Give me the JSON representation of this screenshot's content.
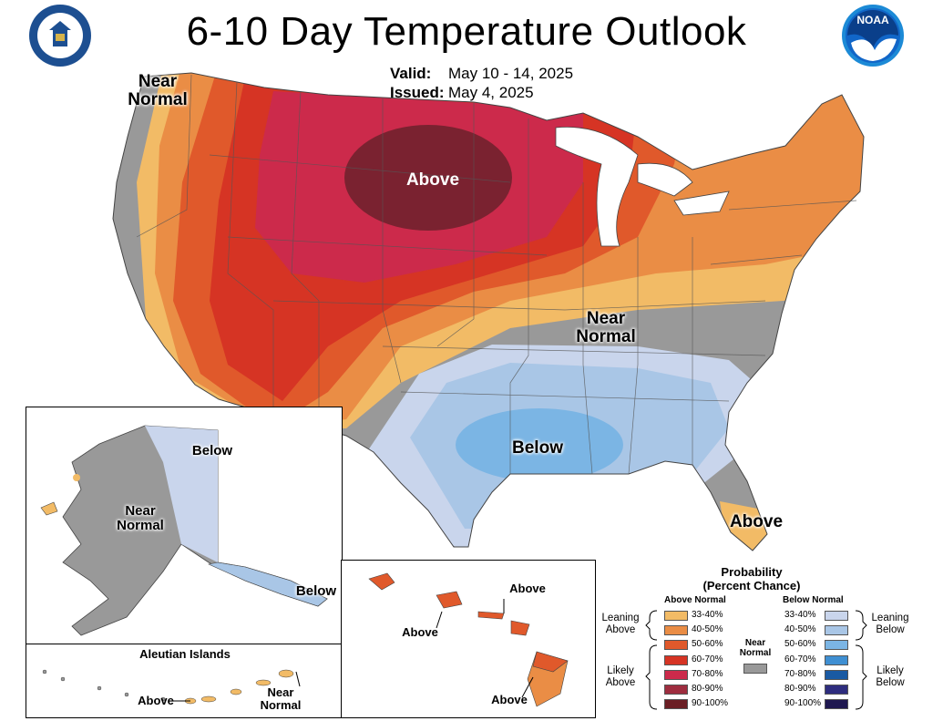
{
  "header": {
    "title": "6-10 Day Temperature Outlook",
    "valid_label": "Valid:",
    "valid_value": "May 10 - 14, 2025",
    "issued_label": "Issued:",
    "issued_value": "May 4, 2025"
  },
  "logos": {
    "left": "department-of-commerce-seal",
    "right": "noaa-logo",
    "noaa_text": "NOAA"
  },
  "map_labels": {
    "conus_near_normal_nw": "Near\nNormal",
    "conus_above": "Above",
    "conus_near_normal_center": "Near\nNormal",
    "conus_below": "Below",
    "conus_above_florida": "Above",
    "alaska_below_north": "Below",
    "alaska_near_normal": "Near\nNormal",
    "alaska_below_south": "Below",
    "aleutian_title": "Aleutian Islands",
    "aleutian_above": "Above",
    "aleutian_near_normal": "Near\nNormal",
    "hawaii_above_1": "Above",
    "hawaii_above_2": "Above",
    "hawaii_above_3": "Above"
  },
  "legend": {
    "title": "Probability\n(Percent Chance)",
    "above_header": "Above Normal",
    "below_header": "Below Normal",
    "near_normal": "Near\nNormal",
    "leaning_above": "Leaning\nAbove",
    "likely_above": "Likely\nAbove",
    "leaning_below": "Leaning\nBelow",
    "likely_below": "Likely\nBelow",
    "above_rows": [
      {
        "pct": "33-40%",
        "color": "#f2bb66"
      },
      {
        "pct": "40-50%",
        "color": "#ea8d45"
      },
      {
        "pct": "50-60%",
        "color": "#e0592b"
      },
      {
        "pct": "60-70%",
        "color": "#d63424"
      },
      {
        "pct": "70-80%",
        "color": "#cc2a4b"
      },
      {
        "pct": "80-90%",
        "color": "#9e2d3f"
      },
      {
        "pct": "90-100%",
        "color": "#6b1e24"
      }
    ],
    "below_rows": [
      {
        "pct": "33-40%",
        "color": "#c9d5ec"
      },
      {
        "pct": "40-50%",
        "color": "#a9c6e6"
      },
      {
        "pct": "50-60%",
        "color": "#7bb5e4"
      },
      {
        "pct": "60-70%",
        "color": "#3f8fd2"
      },
      {
        "pct": "70-80%",
        "color": "#1a5aa3"
      },
      {
        "pct": "80-90%",
        "color": "#2e2d7e"
      },
      {
        "pct": "90-100%",
        "color": "#1f1850"
      }
    ],
    "near_normal_color": "#999999"
  }
}
